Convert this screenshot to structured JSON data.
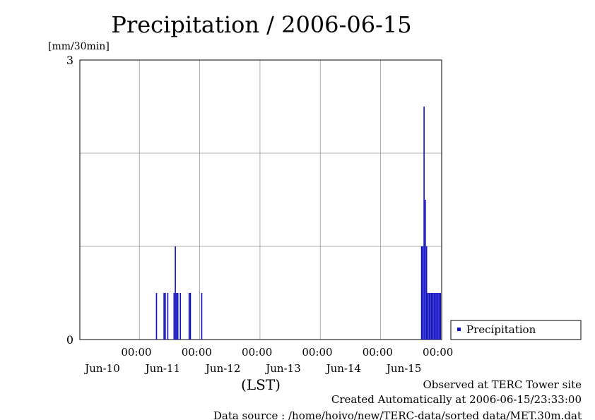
{
  "chart_data": {
    "type": "bar",
    "title": "Precipitation / 2006-06-15",
    "ylabel": "[mm/30min]",
    "xlabel": "(LST)",
    "ylim": [
      0,
      3
    ],
    "y_ticks": [
      "3",
      "0"
    ],
    "x_tick_top": "00:00",
    "x_tick_dates": [
      "Jun-10",
      "Jun-11",
      "Jun-12",
      "Jun-13",
      "Jun-14",
      "Jun-15"
    ],
    "xlim_hours": [
      0,
      144
    ],
    "grid": true,
    "legend_position": "right",
    "series": [
      {
        "name": "Precipitation",
        "color": "#1010c0",
        "x_hours": [
          30.5,
          33.5,
          34.0,
          35.0,
          37.5,
          38.0,
          38.5,
          39.0,
          40.0,
          43.5,
          44.0,
          48.5,
          136.0,
          136.5,
          137.0,
          137.5,
          138.0,
          138.5,
          139.0,
          139.5,
          140.0,
          140.5,
          141.0,
          141.5,
          142.0,
          142.5,
          143.0,
          143.5
        ],
        "values": [
          0.5,
          0.5,
          0.5,
          0.5,
          0.5,
          1.0,
          0.5,
          0.5,
          0.5,
          0.5,
          0.5,
          0.5,
          1.0,
          1.0,
          2.5,
          1.5,
          1.0,
          0.5,
          0.5,
          0.5,
          0.5,
          0.5,
          0.5,
          0.5,
          0.5,
          0.5,
          0.5,
          0.5
        ]
      }
    ]
  },
  "footer": {
    "line1": "Observed at TERC Tower site",
    "line2": "Created Automatically at 2006-06-15/23:33:00",
    "line3": "Data source : /home/hoivo/new/TERC-data/sorted  data/MET.30m.dat"
  }
}
